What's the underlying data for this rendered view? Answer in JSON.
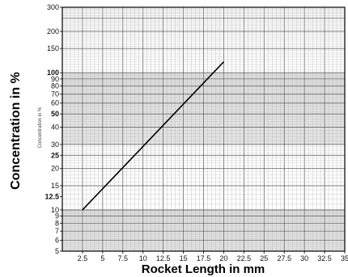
{
  "chart_data": {
    "type": "line",
    "xlabel": "Rocket Length in mm",
    "ylabel": "Concentration in %",
    "inner_ylabel": "Concentration in %",
    "x_scale": "linear",
    "y_scale": "log",
    "xlim": [
      0,
      35
    ],
    "ylim": [
      5,
      300
    ],
    "grid": true,
    "x_ticks": [
      {
        "v": 2.5,
        "label": "2.5"
      },
      {
        "v": 5,
        "label": "5"
      },
      {
        "v": 7.5,
        "label": "7.5"
      },
      {
        "v": 10,
        "label": "10"
      },
      {
        "v": 12.5,
        "label": "12.5"
      },
      {
        "v": 15,
        "label": "15"
      },
      {
        "v": 17.5,
        "label": "17.5"
      },
      {
        "v": 20,
        "label": "20"
      },
      {
        "v": 22.5,
        "label": "22.5"
      },
      {
        "v": 25,
        "label": "25"
      },
      {
        "v": 27.5,
        "label": "27.5"
      },
      {
        "v": 30,
        "label": "30"
      },
      {
        "v": 32.5,
        "label": "32.5"
      },
      {
        "v": 35,
        "label": "35"
      }
    ],
    "y_ticks": [
      {
        "v": 300,
        "label": "300",
        "bold": false
      },
      {
        "v": 200,
        "label": "200",
        "bold": false
      },
      {
        "v": 150,
        "label": "150",
        "bold": false
      },
      {
        "v": 100,
        "label": "100",
        "bold": true
      },
      {
        "v": 90,
        "label": "90",
        "bold": false
      },
      {
        "v": 80,
        "label": "80",
        "bold": false
      },
      {
        "v": 70,
        "label": "70",
        "bold": false
      },
      {
        "v": 60,
        "label": "60",
        "bold": false
      },
      {
        "v": 50,
        "label": "50",
        "bold": true
      },
      {
        "v": 40,
        "label": "40",
        "bold": false
      },
      {
        "v": 30,
        "label": "30",
        "bold": false
      },
      {
        "v": 25,
        "label": "25",
        "bold": true
      },
      {
        "v": 20,
        "label": "20",
        "bold": false
      },
      {
        "v": 15,
        "label": "15",
        "bold": false
      },
      {
        "v": 12.5,
        "label": "12.5",
        "bold": true
      },
      {
        "v": 10,
        "label": "10",
        "bold": false
      },
      {
        "v": 9,
        "label": "9",
        "bold": false
      },
      {
        "v": 8,
        "label": "8",
        "bold": false
      },
      {
        "v": 7,
        "label": "7",
        "bold": false
      },
      {
        "v": 6,
        "label": "6",
        "bold": false
      },
      {
        "v": 5,
        "label": "5",
        "bold": false
      }
    ],
    "shaded_bands": [
      [
        10,
        5
      ],
      [
        100,
        30
      ]
    ],
    "series": [
      {
        "points": [
          {
            "x": 2.5,
            "y": 10
          },
          {
            "x": 20,
            "y": 120
          }
        ],
        "color": "#000000"
      }
    ]
  }
}
